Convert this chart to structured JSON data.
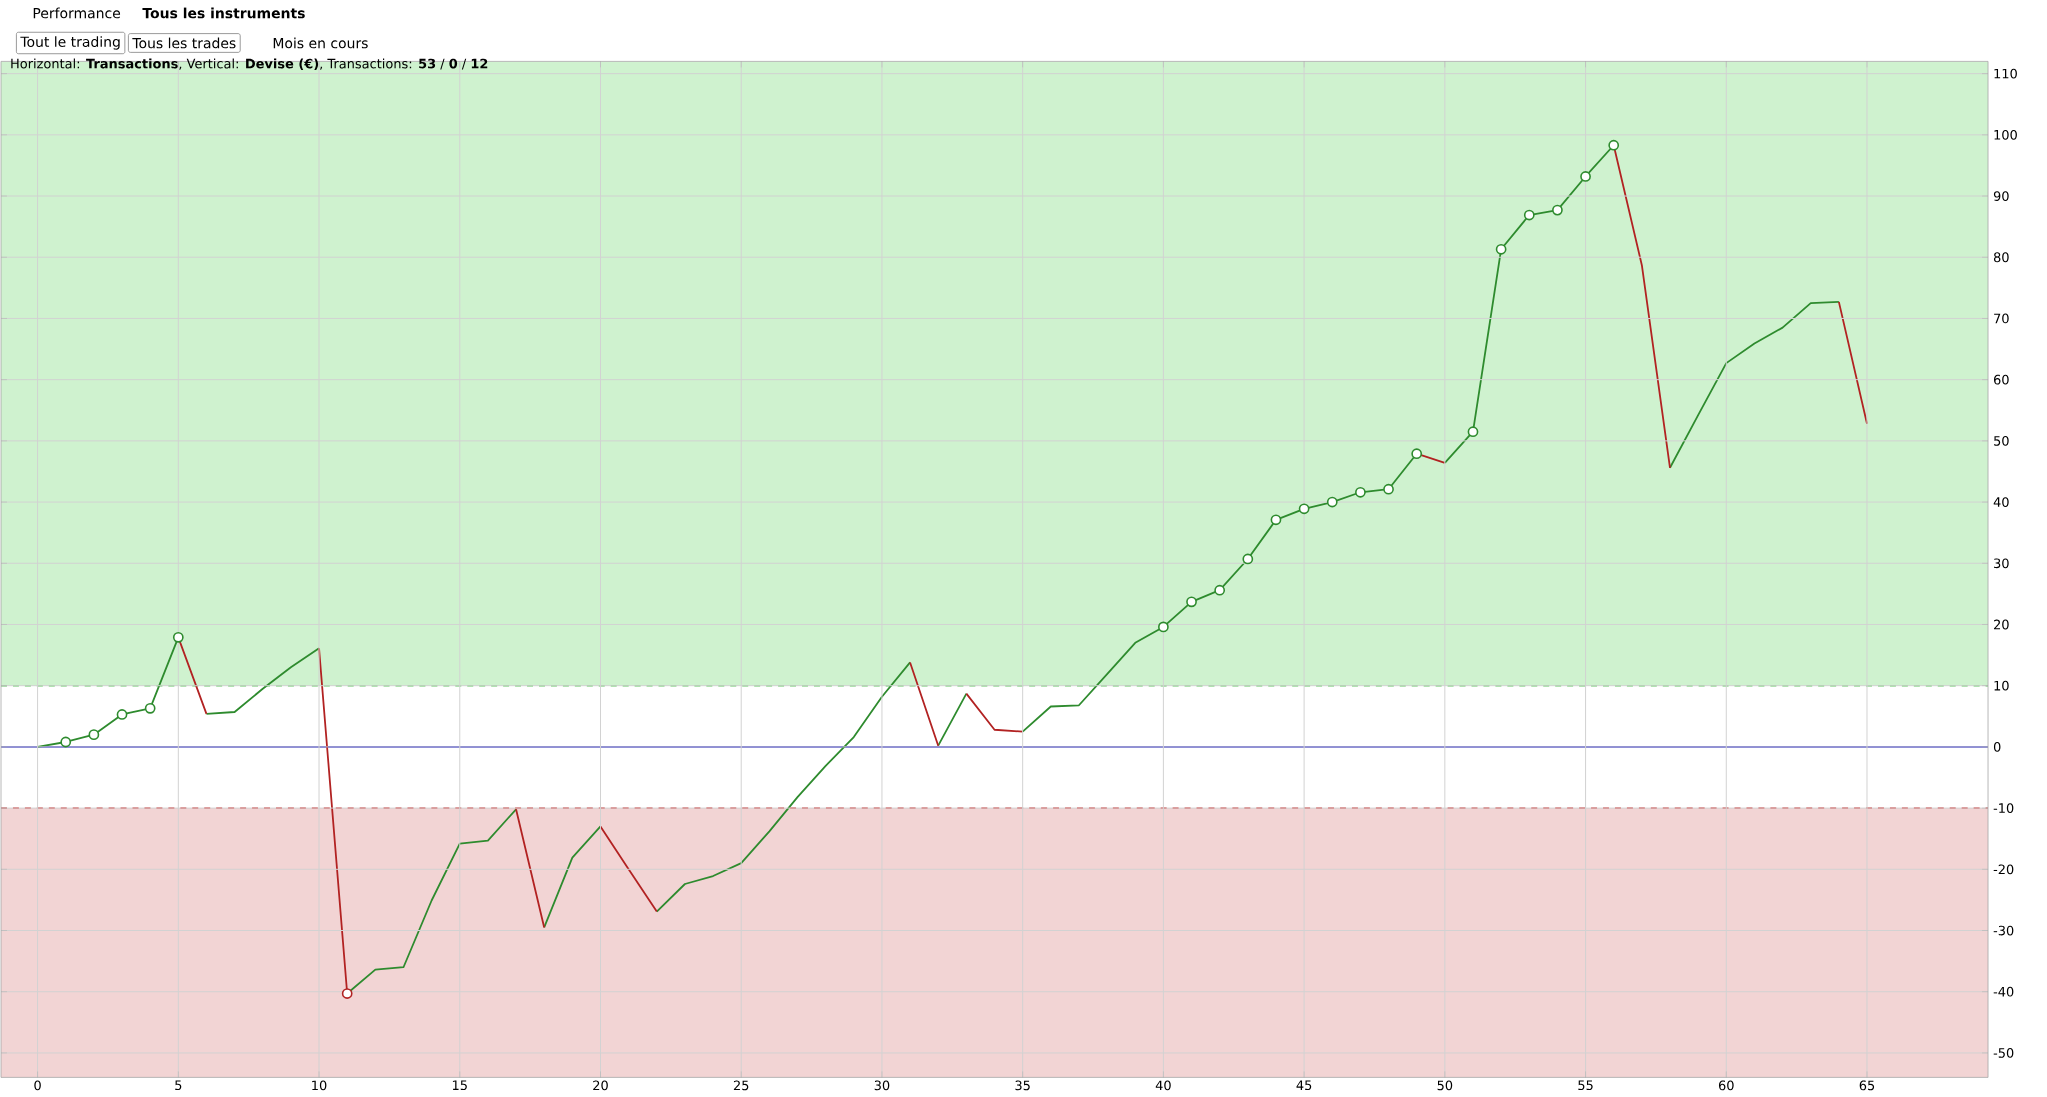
{
  "chart_data": {
    "type": "line",
    "title": "Horizontal: **Transactions**, Vertical: **Devise (€)**, Transactions: **53** / **0** / **12**",
    "annotations": [
      "Performance",
      "Tous les instruments",
      "Tout le trading",
      "Tous les trades",
      "Mois en cours"
    ],
    "xlim": [
      -1.3,
      69.3
    ],
    "ylim": [
      -54,
      112
    ],
    "xticks": [
      0,
      5,
      10,
      15,
      20,
      25,
      30,
      35,
      40,
      45,
      50,
      55,
      60,
      65
    ],
    "yticks": [
      -50,
      -40,
      -30,
      -20,
      -10,
      0,
      10,
      20,
      30,
      40,
      50,
      60,
      70,
      80,
      90,
      100,
      110
    ],
    "grid": true,
    "bands": [
      {
        "axis": "y",
        "from": 10,
        "to": 112,
        "color": "#cff2cf"
      },
      {
        "axis": "y",
        "from": -54,
        "to": -10,
        "color": "#f2d4d4"
      }
    ],
    "ref_lines": [
      {
        "axis": "y",
        "value": 0,
        "color": "#3333cc",
        "line_style": "solid"
      },
      {
        "axis": "y",
        "value": 10,
        "color": "#55cc55",
        "line_style": "dashed"
      },
      {
        "axis": "y",
        "value": -10,
        "color": "#dd5555",
        "line_style": "dashed"
      }
    ],
    "series": [
      {
        "color": "#2e8b2e",
        "x": [
          0,
          1,
          2,
          3,
          4,
          5,
          5.5,
          6,
          7,
          8,
          9,
          10,
          10.5,
          11,
          12,
          13,
          14,
          15,
          16,
          17,
          17.5,
          18,
          19,
          20,
          21,
          22,
          23,
          24,
          25,
          26,
          27,
          28,
          29,
          30,
          31,
          31.5,
          32,
          33,
          34,
          35,
          36,
          37,
          38,
          39,
          40,
          41,
          42,
          43,
          44,
          45,
          46,
          47,
          48,
          49,
          49.5,
          50,
          51,
          52,
          53,
          54,
          55,
          56,
          57,
          58,
          59,
          60,
          61,
          62,
          63,
          64
        ],
        "values": [
          0,
          0.8,
          2.0,
          5.3,
          6.3,
          17.9,
          null,
          5.4,
          5.7,
          9.5,
          13.0,
          16.1,
          null,
          -40.3,
          -36.4,
          -36.0,
          -25.1,
          -15.8,
          -15.3,
          -10.2,
          null,
          -29.5,
          -18.1,
          -13.0,
          null,
          -26.9,
          -22.4,
          -21.1,
          -19.0,
          -13.8,
          -8.2,
          -3.1,
          1.6,
          8.2,
          13.8,
          null,
          0.2,
          8.7,
          null,
          2.5,
          6.6,
          6.8,
          11.9,
          17.0,
          19.6,
          23.7,
          25.6,
          30.7,
          37.1,
          38.9,
          40.0,
          41.6,
          42.1,
          47.9,
          null,
          46.4,
          51.5,
          81.3,
          86.9,
          87.7,
          93.2,
          98.3,
          null,
          45.6,
          54.2,
          62.7,
          65.9,
          68.5,
          72.5,
          72.7
        ]
      },
      {
        "color": "#b22222",
        "x": [
          5,
          6,
          8,
          10,
          11,
          14,
          17,
          18,
          19,
          20,
          21,
          22,
          26.5,
          31,
          32,
          32.5,
          33,
          34,
          35,
          42,
          49,
          50,
          53,
          56,
          57,
          58,
          61,
          64,
          65
        ],
        "values": [
          17.9,
          5.4,
          null,
          16.1,
          -40.3,
          null,
          -10.2,
          -29.5,
          null,
          -13.0,
          -20.0,
          -26.9,
          null,
          13.8,
          0.2,
          null,
          8.7,
          2.8,
          2.5,
          null,
          47.9,
          46.4,
          null,
          98.3,
          78.7,
          45.6,
          null,
          72.7,
          52.8
        ]
      },
      {
        "type": "scatter",
        "marker": "circle",
        "x": [
          1,
          2,
          3,
          4,
          5,
          11,
          40,
          41,
          42,
          43,
          44,
          45,
          46,
          47,
          48,
          49,
          51,
          52,
          53,
          54,
          55,
          56
        ],
        "values": [
          0.8,
          2.0,
          5.3,
          6.3,
          17.9,
          -40.3,
          19.6,
          23.7,
          25.6,
          30.7,
          37.1,
          38.9,
          40.0,
          41.6,
          42.1,
          47.9,
          51.5,
          81.3,
          86.9,
          87.7,
          93.2,
          98.3
        ],
        "colors": [
          "#2e8b2e",
          "#2e8b2e",
          "#2e8b2e",
          "#2e8b2e",
          "#2e8b2e",
          "#b22222",
          "#2e8b2e",
          "#2e8b2e",
          "#2e8b2e",
          "#2e8b2e",
          "#2e8b2e",
          "#2e8b2e",
          "#2e8b2e",
          "#2e8b2e",
          "#2e8b2e",
          "#2e8b2e",
          "#2e8b2e",
          "#2e8b2e",
          "#2e8b2e",
          "#2e8b2e",
          "#2e8b2e",
          "#2e8b2e"
        ]
      }
    ]
  }
}
